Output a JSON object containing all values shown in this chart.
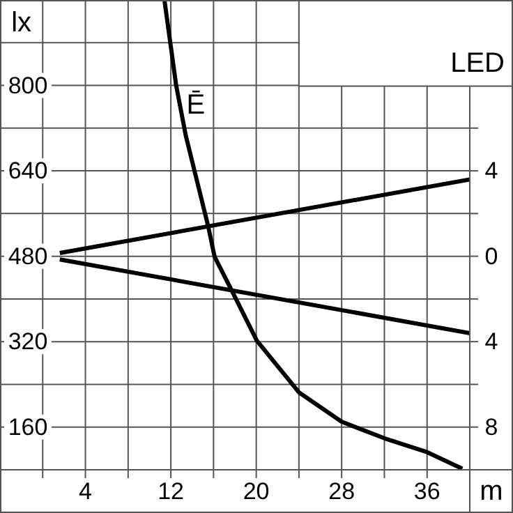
{
  "chart_data": {
    "type": "line",
    "title": "LED",
    "xlabel": "m",
    "ylabel": "lx",
    "xlim": [
      -4,
      40
    ],
    "ylim": [
      80,
      960
    ],
    "y2lim": [
      -10,
      12
    ],
    "xticks": [
      {
        "value": 0,
        "label": null
      },
      4,
      {
        "value": 8,
        "label": null
      },
      12,
      {
        "value": 16,
        "label": null
      },
      20,
      {
        "value": 24,
        "label": null
      },
      28,
      {
        "value": 32,
        "label": null
      },
      36
    ],
    "yticks": [
      160,
      {
        "value": 240,
        "label": null
      },
      320,
      {
        "value": 400,
        "label": null
      },
      480,
      {
        "value": 560,
        "label": null
      },
      640,
      {
        "value": 720,
        "label": null
      },
      800,
      {
        "value": 880,
        "label": null
      }
    ],
    "y2ticks": [
      {
        "value": 4,
        "label": "4"
      },
      0,
      {
        "value": -4,
        "label": "4"
      },
      {
        "value": -8,
        "label": "8"
      }
    ],
    "grid": true,
    "marker": "none",
    "line_style": "solid",
    "series": [
      {
        "name": "Ē",
        "color": "#000000",
        "x": [
          11.4,
          12.5,
          13.4,
          15.5,
          16.1,
          17.7,
          20.05,
          24,
          28,
          32,
          36,
          39.3
        ],
        "values": [
          960,
          800,
          706,
          536,
          479,
          416,
          322,
          225,
          170,
          139,
          113,
          82
        ]
      },
      {
        "color": "#000000",
        "axis": "y2",
        "x": [
          1.6,
          40
        ],
        "values": [
          0.15,
          3.6
        ]
      },
      {
        "color": "#000000",
        "axis": "y2",
        "x": [
          1.6,
          40
        ],
        "values": [
          -0.15,
          -3.6
        ]
      }
    ]
  }
}
